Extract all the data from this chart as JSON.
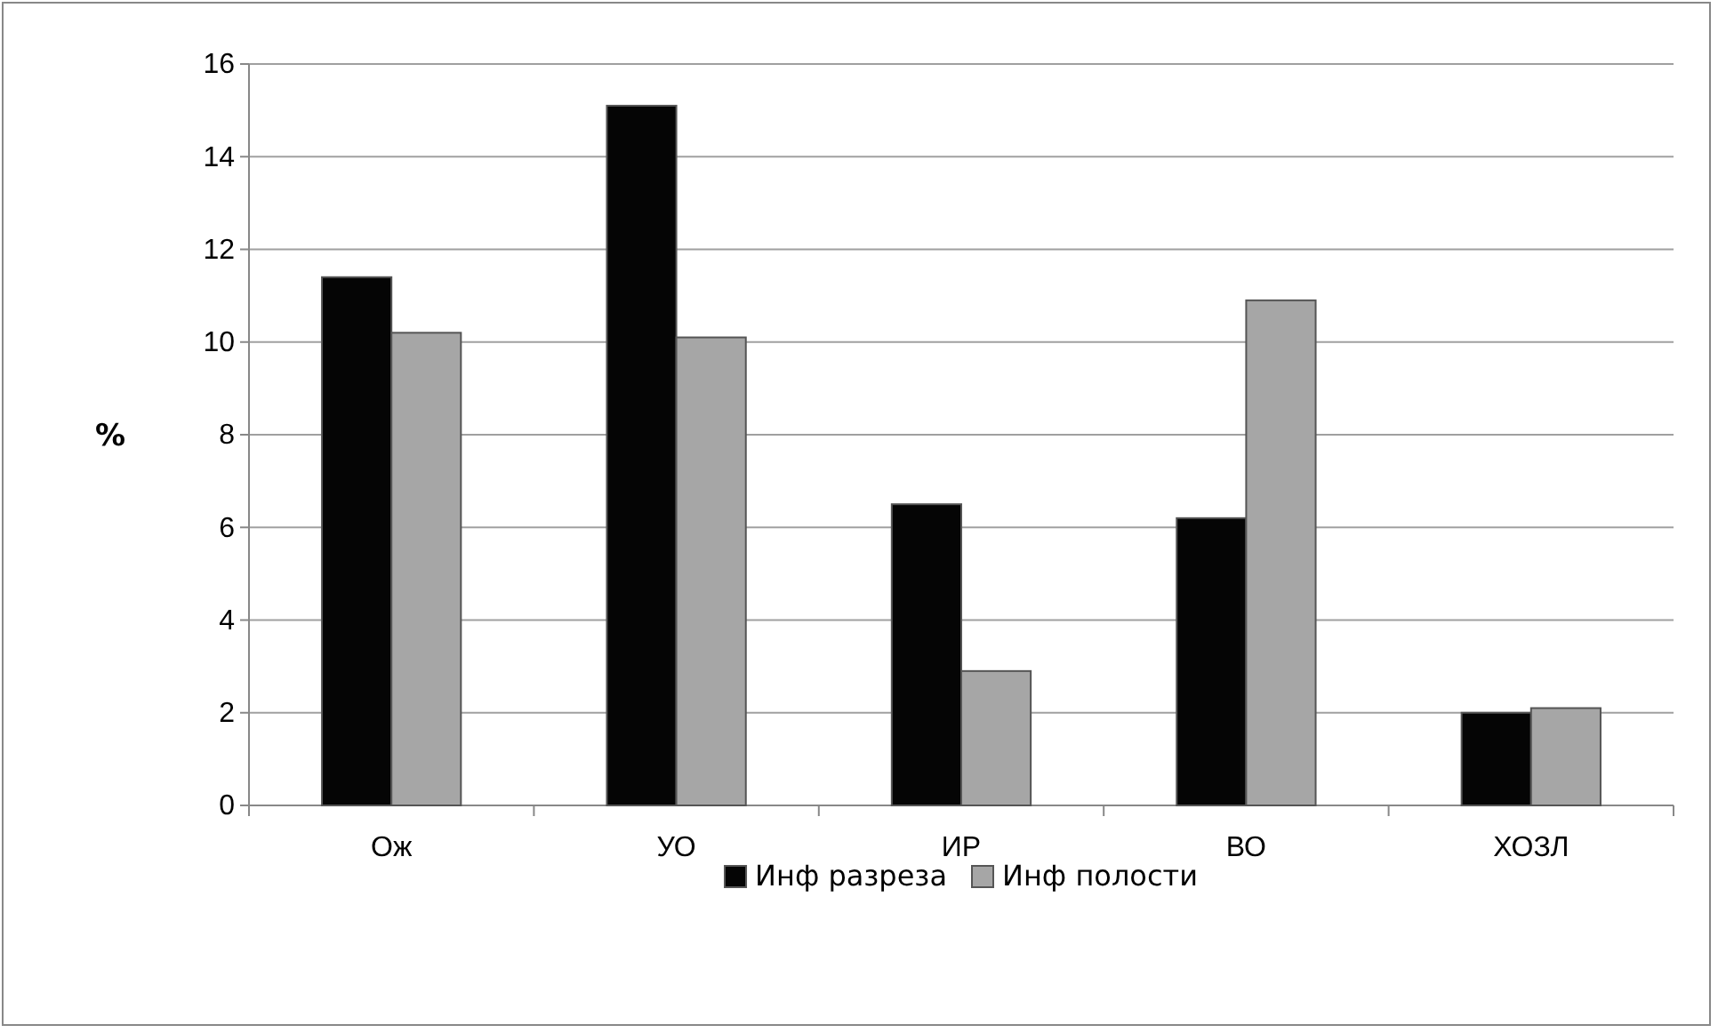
{
  "chart_data": {
    "type": "bar",
    "ylabel": "%",
    "categories": [
      "Ож",
      "УО",
      "ИР",
      "ВО",
      "ХОЗЛ"
    ],
    "series": [
      {
        "name": "Инф разреза",
        "color": "#050505",
        "values": [
          11.4,
          15.1,
          6.5,
          6.2,
          2.0
        ]
      },
      {
        "name": "Инф полости",
        "color": "#a6a6a6",
        "values": [
          10.2,
          10.1,
          2.9,
          10.9,
          2.1
        ]
      }
    ],
    "ylim": [
      0,
      16
    ],
    "yticks": [
      0,
      2,
      4,
      6,
      8,
      10,
      12,
      14,
      16
    ],
    "grid": "y",
    "legend": "bottom"
  }
}
